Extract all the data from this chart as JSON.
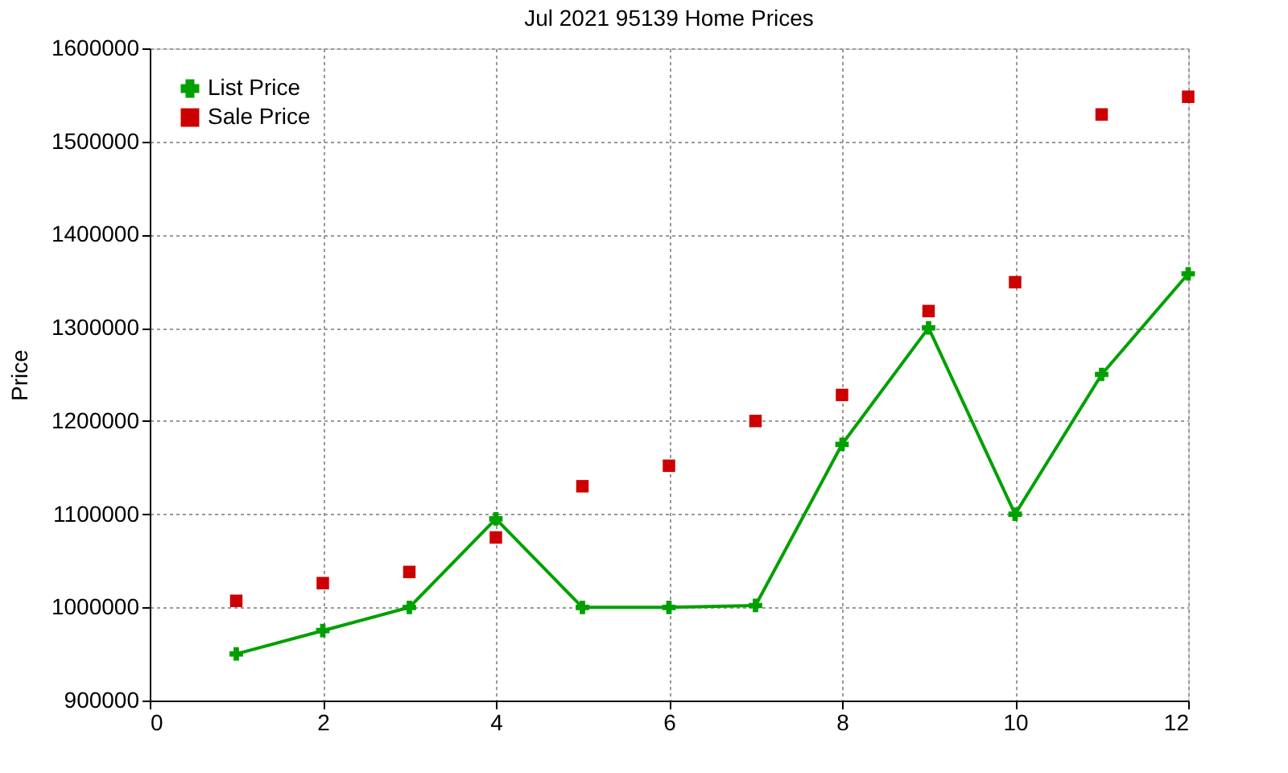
{
  "chart_data": {
    "type": "line",
    "title": "Jul 2021 95139 Home Prices",
    "ylabel": "Price",
    "x": [
      1,
      2,
      3,
      4,
      5,
      6,
      7,
      8,
      9,
      10,
      11,
      12
    ],
    "series": [
      {
        "name": "List Price",
        "type": "line",
        "marker": "cross",
        "color": "#00a000",
        "values": [
          950000,
          975000,
          1000000,
          1095000,
          1000000,
          1000000,
          1002000,
          1175000,
          1300000,
          1100000,
          1250000,
          1358000
        ]
      },
      {
        "name": "Sale Price",
        "type": "scatter",
        "marker": "square",
        "color": "#cc0000",
        "values": [
          1007000,
          1026000,
          1038000,
          1075000,
          1130000,
          1152000,
          1200000,
          1228000,
          1318000,
          1349000,
          1529000,
          1548000
        ]
      }
    ],
    "xlim": [
      0,
      12
    ],
    "xticks": [
      0,
      2,
      4,
      6,
      8,
      10,
      12
    ],
    "ylim": [
      900000,
      1600000
    ],
    "yticks": [
      900000,
      1000000,
      1100000,
      1200000,
      1300000,
      1400000,
      1500000,
      1600000
    ],
    "grid": true,
    "legend": "top left"
  }
}
